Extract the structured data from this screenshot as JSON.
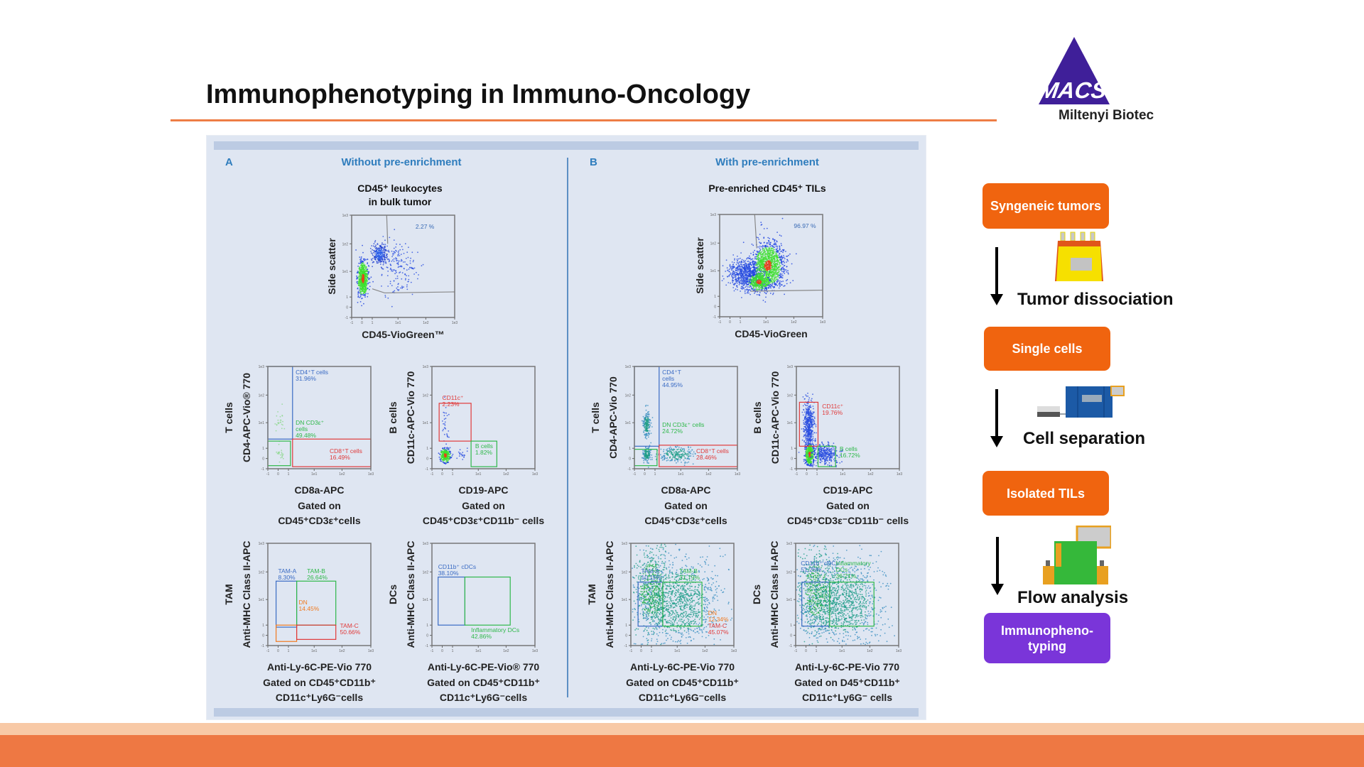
{
  "slide": {
    "title": "Immunophenotyping in Immuno-Oncology",
    "logo": {
      "mark": "MACS",
      "company": "Miltenyi Biotec",
      "color": "#3f1f99"
    },
    "accent_color": "#ee7d45"
  },
  "figure": {
    "panels": [
      {
        "letter": "A",
        "heading": "Without pre-enrichment"
      },
      {
        "letter": "B",
        "heading": "With pre-enrichment"
      }
    ]
  },
  "workflow": {
    "steps": [
      {
        "label": "Syngeneic tumors",
        "color": "#f0640f"
      },
      {
        "label": "Single cells",
        "color": "#f0640f"
      },
      {
        "label": "Isolated TILs",
        "color": "#f0640f"
      },
      {
        "label": "Immunopheno-typing",
        "color": "#7a35d9"
      }
    ],
    "transitions": [
      {
        "label": "Tumor dissociation",
        "icon": "tissue-dissociator-icon"
      },
      {
        "label": "Cell separation",
        "icon": "cell-separator-icon"
      },
      {
        "label": "Flow analysis",
        "icon": "flow-cytometer-icon"
      }
    ]
  },
  "chart_data": [
    {
      "type": "scatter",
      "panel": "A",
      "title": "CD45⁺ leukocytes\nin bulk tumor",
      "group": "",
      "xlabel": "CD45-VioGreen™",
      "ylabel": "Side scatter",
      "gated_on": [],
      "x_ticks": [
        "-1",
        "0",
        "1",
        "1e1",
        "1e2",
        "1e3"
      ],
      "y_ticks": [
        "-1",
        "0",
        "1",
        "1e1",
        "1e2",
        "1e3"
      ],
      "gates": [
        {
          "name": "",
          "percent": "2.27 %",
          "color": "#3a6bb5"
        }
      ]
    },
    {
      "type": "scatter",
      "panel": "A",
      "title": "",
      "group": "T cells",
      "xlabel": "CD8a-APC",
      "ylabel": "CD4-APC-Vio® 770",
      "gated_on": [
        "Gated on",
        "CD45⁺CD3ε⁺cells"
      ],
      "x_ticks": [
        "-1",
        "0",
        "1",
        "1e1",
        "1e2",
        "1e3"
      ],
      "y_ticks": [
        "-1",
        "0",
        "1",
        "1e1",
        "1e2",
        "1e3"
      ],
      "gates": [
        {
          "name": "CD4⁺T cells",
          "percent": "31.96%",
          "color": "#3a6bc4"
        },
        {
          "name": "DN CD3ε⁺\ncells",
          "percent": "49.48%",
          "color": "#2fb84a"
        },
        {
          "name": "CD8⁺T cells",
          "percent": "16.49%",
          "color": "#e03a3a"
        }
      ]
    },
    {
      "type": "scatter",
      "panel": "A",
      "title": "",
      "group": "B cells",
      "xlabel": "CD19-APC",
      "ylabel": "CD11c-APC-Vio 770",
      "gated_on": [
        "Gated on",
        "CD45⁺CD3ε⁺CD11b⁻ cells"
      ],
      "x_ticks": [
        "-1",
        "0",
        "1",
        "1e1",
        "1e2",
        "1e3"
      ],
      "y_ticks": [
        "-1",
        "0",
        "1",
        "1e1",
        "1e2",
        "1e3"
      ],
      "gates": [
        {
          "name": "CD11c⁺",
          "percent": "2.23%",
          "color": "#e03a3a"
        },
        {
          "name": "B cells",
          "percent": "1.82%",
          "color": "#2fb84a"
        }
      ]
    },
    {
      "type": "scatter",
      "panel": "A",
      "title": "",
      "group": "TAM",
      "xlabel": "Anti-Ly-6C-PE-Vio 770",
      "ylabel": "Anti-MHC Class II-APC",
      "gated_on": [
        "Gated on CD45⁺CD11b⁺",
        "CD11c⁺Ly6G⁻cells"
      ],
      "x_ticks": [
        "-1",
        "0",
        "1",
        "1e1",
        "1e2",
        "1e3"
      ],
      "y_ticks": [
        "-1",
        "0",
        "1",
        "1e1",
        "1e2",
        "1e3"
      ],
      "gates": [
        {
          "name": "TAM-A",
          "percent": "8.30%",
          "color": "#3a6bc4"
        },
        {
          "name": "TAM-B",
          "percent": "26.64%",
          "color": "#2fb84a"
        },
        {
          "name": "DN",
          "percent": "14.45%",
          "color": "#f07a20"
        },
        {
          "name": "TAM-C",
          "percent": "50.66%",
          "color": "#e03a3a"
        }
      ]
    },
    {
      "type": "scatter",
      "panel": "A",
      "title": "",
      "group": "DCs",
      "xlabel": "Anti-Ly-6C-PE-Vio® 770",
      "ylabel": "Anti-MHC Class II-APC",
      "gated_on": [
        "Gated on CD45⁺CD11b⁺",
        "CD11c⁺Ly6G⁻cells"
      ],
      "x_ticks": [
        "-1",
        "0",
        "1",
        "1e1",
        "1e2",
        "1e3"
      ],
      "y_ticks": [
        "-1",
        "0",
        "1",
        "1e1",
        "1e2",
        "1e3"
      ],
      "gates": [
        {
          "name": "CD11b⁺ cDCs",
          "percent": "38.10%",
          "color": "#3a6bc4"
        },
        {
          "name": "Inflammatory DCs",
          "percent": "42.86%",
          "color": "#2fb84a"
        }
      ]
    },
    {
      "type": "scatter",
      "panel": "B",
      "title": "Pre-enriched CD45⁺ TILs",
      "group": "",
      "xlabel": "CD45-VioGreen",
      "ylabel": "Side scatter",
      "gated_on": [],
      "x_ticks": [
        "-1",
        "0",
        "1",
        "1e1",
        "1e2",
        "1e3"
      ],
      "y_ticks": [
        "-1",
        "0",
        "1",
        "1e1",
        "1e2",
        "1e3"
      ],
      "gates": [
        {
          "name": "",
          "percent": "96.97 %",
          "color": "#3a6bb5"
        }
      ]
    },
    {
      "type": "scatter",
      "panel": "B",
      "title": "",
      "group": "T cells",
      "xlabel": "CD8a-APC",
      "ylabel": "CD4-APC-Vio 770",
      "gated_on": [
        "Gated on",
        "CD45⁺CD3ε⁺cells"
      ],
      "x_ticks": [
        "-1",
        "0",
        "1",
        "1e1",
        "1e2",
        "1e3"
      ],
      "y_ticks": [
        "-1",
        "0",
        "1",
        "1e1",
        "1e2",
        "1e3"
      ],
      "gates": [
        {
          "name": "CD4⁺T\ncells",
          "percent": "44.95%",
          "color": "#3a6bc4"
        },
        {
          "name": "DN CD3ε⁺ cells",
          "percent": "24.72%",
          "color": "#2fb84a"
        },
        {
          "name": "CD8⁺T cells",
          "percent": "28.46%",
          "color": "#e03a3a"
        }
      ]
    },
    {
      "type": "scatter",
      "panel": "B",
      "title": "",
      "group": "B cells",
      "xlabel": "CD19-APC",
      "ylabel": "CD11c-APC-Vio 770",
      "gated_on": [
        "Gated on",
        "CD45⁺CD3ε⁻CD11b⁻ cells"
      ],
      "x_ticks": [
        "-1",
        "0",
        "1",
        "1e1",
        "1e2",
        "1e3"
      ],
      "y_ticks": [
        "-1",
        "0",
        "1",
        "1e1",
        "1e2",
        "1e3"
      ],
      "gates": [
        {
          "name": "CD11c⁺",
          "percent": "19.76%",
          "color": "#e03a3a"
        },
        {
          "name": "B cells",
          "percent": "16.72%",
          "color": "#2fb84a"
        }
      ]
    },
    {
      "type": "scatter",
      "panel": "B",
      "title": "",
      "group": "TAM",
      "xlabel": "Anti-Ly-6C-PE-Vio 770",
      "ylabel": "Anti-MHC Class II-APC",
      "gated_on": [
        "Gated on CD45⁺CD11b⁺",
        "CD11c⁺Ly6G⁻cells"
      ],
      "x_ticks": [
        "-1",
        "0",
        "1",
        "1e1",
        "1e2",
        "1e3"
      ],
      "y_ticks": [
        "-1",
        "0",
        "1",
        "1e1",
        "1e2",
        "1e3"
      ],
      "gates": [
        {
          "name": "TAM-A",
          "percent": "10.11%",
          "color": "#3a6bc4"
        },
        {
          "name": "TAM-B",
          "percent": "31.79%",
          "color": "#2fb84a"
        },
        {
          "name": "DN",
          "percent": "12.34%",
          "color": "#f07a20"
        },
        {
          "name": "TAM-C",
          "percent": "45.07%",
          "color": "#e03a3a"
        }
      ]
    },
    {
      "type": "scatter",
      "panel": "B",
      "title": "",
      "group": "DCs",
      "xlabel": "Anti-Ly-6C-PE-Vio 770",
      "ylabel": "Anti-MHC Class II-APC",
      "gated_on": [
        "Gated on D45⁺CD11b⁺",
        "CD11c⁺Ly6G⁻ cells"
      ],
      "x_ticks": [
        "-1",
        "0",
        "1",
        "1e1",
        "1e2",
        "1e3"
      ],
      "y_ticks": [
        "-1",
        "0",
        "1",
        "1e1",
        "1e2",
        "1e3"
      ],
      "gates": [
        {
          "name": "CD11b⁺ cDCs",
          "percent": "51.26%",
          "color": "#3a6bc4"
        },
        {
          "name": "Inflammatory\nDCs",
          "percent": "36.71%",
          "color": "#2fb84a"
        }
      ]
    }
  ]
}
